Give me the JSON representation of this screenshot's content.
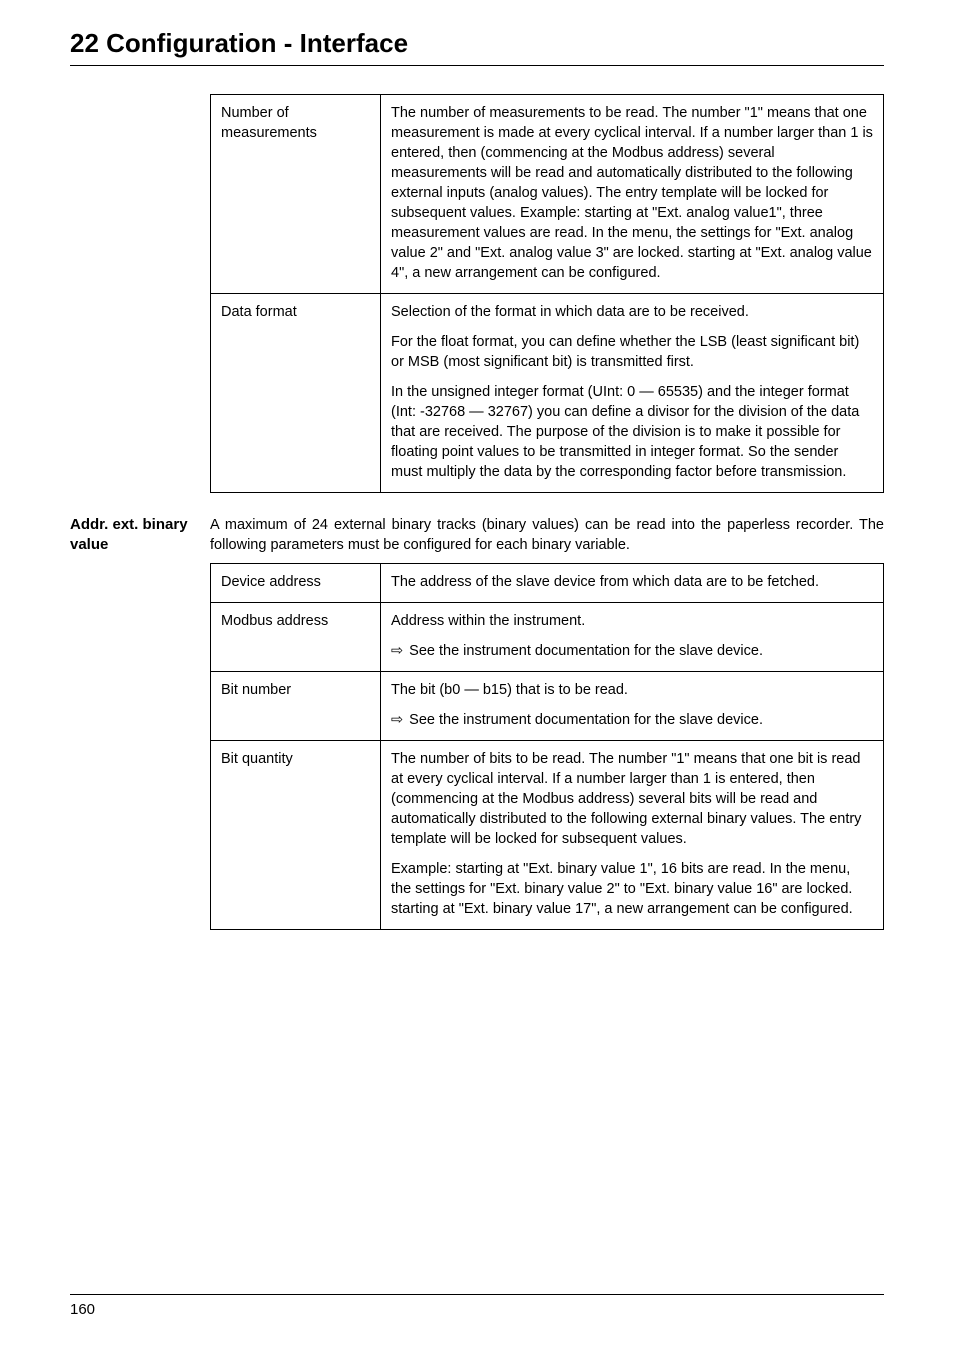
{
  "chapter_title": "22 Configuration - Interface",
  "table1": {
    "rows": [
      {
        "key": "Number of measurements",
        "blocks": [
          "The number of measurements to be read. The number \"1\" means that one measurement is made at every cyclical interval. If a number larger than 1 is entered, then (commencing at the Modbus address) several measurements will be read and automatically distributed to the following external inputs (analog values). The entry template will be locked for subsequent values. Example: starting at \"Ext. analog value1\", three measurement values are read. In the menu, the settings for \"Ext. analog value 2\" and \"Ext. analog value 3\" are locked. starting at \"Ext. analog value 4\", a new arrangement can be configured."
        ]
      },
      {
        "key": "Data format",
        "blocks": [
          "Selection of the format in which data are to be received.",
          "For the float format, you can define whether the LSB (least significant bit) or MSB (most significant bit) is transmitted first.",
          "In the unsigned integer format (UInt: 0 — 65535) and the integer format (Int: -32768 — 32767) you can define a divisor for the division of the data that are received. The purpose of the division is to make it possible for floating point values to be transmitted in integer format. So the sender must multiply the data by the corresponding factor before transmission."
        ]
      }
    ]
  },
  "side_label": "Addr. ext. binary value",
  "intro_para": "A maximum of 24 external binary tracks (binary values) can be read into the paperless recorder. The following parameters must be configured for each binary variable.",
  "table2": {
    "rows": [
      {
        "key": "Device address",
        "blocks": [
          {
            "type": "text",
            "text": "The address of the slave device from which data are to be fetched."
          }
        ]
      },
      {
        "key": "Modbus address",
        "blocks": [
          {
            "type": "text",
            "text": "Address within the instrument."
          },
          {
            "type": "arrow",
            "text": "See the instrument documentation for the slave device."
          }
        ]
      },
      {
        "key": "Bit number",
        "blocks": [
          {
            "type": "text",
            "text": "The bit (b0 — b15) that is to be read."
          },
          {
            "type": "arrow",
            "text": "See the instrument documentation for the slave device."
          }
        ]
      },
      {
        "key": "Bit quantity",
        "blocks": [
          {
            "type": "text",
            "text": "The number of bits to be read. The number \"1\" means that one bit is read at every cyclical interval. If a number larger than 1 is entered, then (commencing at the Modbus address) several bits will be read and automatically distributed to the following external binary values. The entry template will be locked for subsequent values."
          },
          {
            "type": "text",
            "text": "Example: starting at \"Ext. binary value 1\", 16 bits are read. In the menu, the settings for \"Ext. binary value 2\" to \"Ext. binary value 16\" are locked. starting at \"Ext. binary value 17\", a new arrangement can be configured."
          }
        ]
      }
    ]
  },
  "page_number": "160"
}
